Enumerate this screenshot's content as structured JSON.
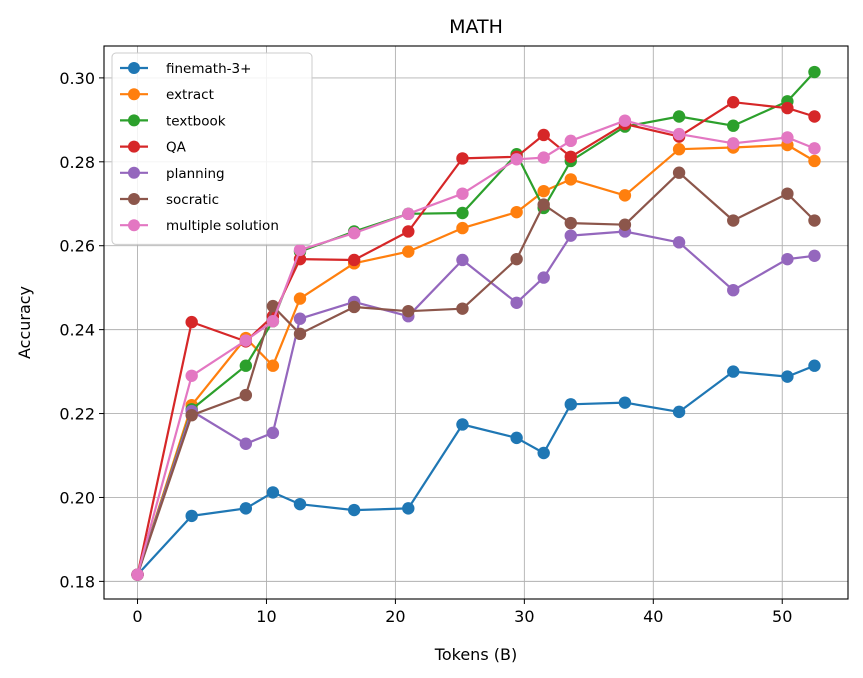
{
  "chart_data": {
    "type": "line",
    "title": "MATH",
    "xlabel": "Tokens (B)",
    "ylabel": "Accuracy",
    "xlim": [
      -2.6,
      55.1
    ],
    "ylim": [
      0.1758,
      0.3076
    ],
    "xticks": [
      0,
      10,
      20,
      30,
      40,
      50
    ],
    "yticks": [
      0.18,
      0.2,
      0.22,
      0.24,
      0.26,
      0.28,
      0.3
    ],
    "ytick_labels": [
      "0.18",
      "0.20",
      "0.22",
      "0.24",
      "0.26",
      "0.28",
      "0.30"
    ],
    "grid": true,
    "legend_position": "top-left",
    "series": [
      {
        "name": "finemath-3+",
        "color": "#1f77b4",
        "x": [
          0,
          4.2,
          8.4,
          10.5,
          12.6,
          16.8,
          21.0,
          25.2,
          29.4,
          31.5,
          33.6,
          37.8,
          42.0,
          46.2,
          50.4,
          52.5
        ],
        "y": [
          0.1816,
          0.1956,
          0.1974,
          0.2012,
          0.1984,
          0.197,
          0.1974,
          0.2174,
          0.2142,
          0.2106,
          0.2222,
          0.2226,
          0.2204,
          0.23,
          0.2288,
          0.2314
        ]
      },
      {
        "name": "extract",
        "color": "#ff7f0e",
        "x": [
          0,
          4.2,
          8.4,
          10.5,
          12.6,
          16.8,
          21.0,
          25.2,
          29.4,
          31.5,
          33.6,
          37.8,
          42.0,
          46.2,
          50.4,
          52.5
        ],
        "y": [
          0.1816,
          0.222,
          0.238,
          0.2314,
          0.2474,
          0.2558,
          0.2586,
          0.2642,
          0.268,
          0.273,
          0.2758,
          0.272,
          0.283,
          0.2834,
          0.284,
          0.2802
        ]
      },
      {
        "name": "textbook",
        "color": "#2ca02c",
        "x": [
          0,
          4.2,
          8.4,
          10.5,
          12.6,
          16.8,
          21.0,
          25.2,
          29.4,
          31.5,
          33.6,
          37.8,
          42.0,
          46.2,
          50.4,
          52.5
        ],
        "y": [
          0.1816,
          0.221,
          0.2314,
          0.242,
          0.2586,
          0.2634,
          0.2676,
          0.2678,
          0.2818,
          0.269,
          0.2802,
          0.2884,
          0.2908,
          0.2886,
          0.2944,
          0.3014
        ]
      },
      {
        "name": "QA",
        "color": "#d62728",
        "x": [
          0,
          4.2,
          8.4,
          10.5,
          12.6,
          16.8,
          21.0,
          25.2,
          29.4,
          31.5,
          33.6,
          37.8,
          42.0,
          46.2,
          50.4,
          52.5
        ],
        "y": [
          0.1816,
          0.2418,
          0.2372,
          0.2432,
          0.2568,
          0.2566,
          0.2634,
          0.2808,
          0.2812,
          0.2864,
          0.2812,
          0.289,
          0.286,
          0.2942,
          0.2928,
          0.2908
        ]
      },
      {
        "name": "planning",
        "color": "#9467bd",
        "x": [
          0,
          4.2,
          8.4,
          10.5,
          12.6,
          16.8,
          21.0,
          25.2,
          29.4,
          31.5,
          33.6,
          37.8,
          42.0,
          46.2,
          50.4,
          52.5
        ],
        "y": [
          0.1816,
          0.2206,
          0.2128,
          0.2154,
          0.2426,
          0.2466,
          0.2432,
          0.2566,
          0.2464,
          0.2524,
          0.2624,
          0.2634,
          0.2608,
          0.2494,
          0.2568,
          0.2576
        ]
      },
      {
        "name": "socratic",
        "color": "#8c564b",
        "x": [
          0,
          4.2,
          8.4,
          10.5,
          12.6,
          16.8,
          21.0,
          25.2,
          29.4,
          31.5,
          33.6,
          37.8,
          42.0,
          46.2,
          50.4,
          52.5
        ],
        "y": [
          0.1816,
          0.2196,
          0.2244,
          0.2456,
          0.239,
          0.2454,
          0.2444,
          0.245,
          0.2568,
          0.2698,
          0.2654,
          0.265,
          0.2774,
          0.266,
          0.2724,
          0.266
        ]
      },
      {
        "name": "multiple solution",
        "color": "#e377c2",
        "x": [
          0,
          4.2,
          8.4,
          10.5,
          12.6,
          16.8,
          21.0,
          25.2,
          29.4,
          31.5,
          33.6,
          37.8,
          42.0,
          46.2,
          50.4,
          52.5
        ],
        "y": [
          0.1816,
          0.229,
          0.2374,
          0.242,
          0.259,
          0.263,
          0.2676,
          0.2724,
          0.2806,
          0.281,
          0.285,
          0.2898,
          0.2866,
          0.2844,
          0.2858,
          0.2832
        ]
      }
    ]
  }
}
